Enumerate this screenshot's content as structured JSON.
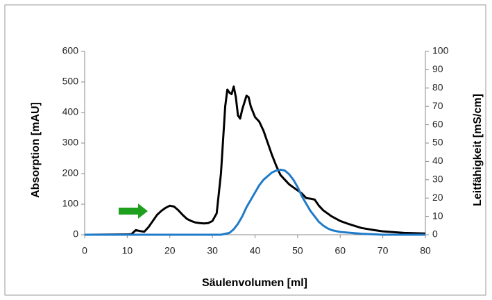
{
  "chart_data": {
    "type": "line",
    "x_label": "Säulenvolumen [ml]",
    "y_label": "Absorption [mAU]",
    "y2_label": "Leitfähigkeit [mS/cm]",
    "xlim": [
      0,
      80
    ],
    "xticks": [
      0,
      10,
      20,
      30,
      40,
      50,
      60,
      70,
      80
    ],
    "ylim": [
      0,
      600
    ],
    "yticks": [
      0,
      100,
      200,
      300,
      400,
      500,
      600
    ],
    "y2lim": [
      0,
      100
    ],
    "y2ticks": [
      0,
      10,
      20,
      30,
      40,
      50,
      60,
      70,
      80,
      90,
      100
    ],
    "series": [
      {
        "color": "#000000",
        "x": [
          0,
          10,
          11,
          12,
          13,
          14,
          15,
          16,
          17,
          18,
          19,
          20,
          21,
          22,
          23,
          24,
          25,
          26,
          27,
          28,
          29,
          30,
          31,
          32,
          33,
          33.5,
          34,
          34.5,
          35,
          35.5,
          36,
          36.5,
          37,
          38,
          38.5,
          39,
          40,
          41,
          42,
          43,
          44,
          45,
          46,
          47,
          48,
          49,
          50,
          51,
          52,
          53,
          54,
          55,
          56,
          57,
          58,
          60,
          62,
          65,
          68,
          70,
          75,
          80
        ],
        "values": [
          0,
          1,
          2,
          15,
          12,
          10,
          25,
          45,
          65,
          78,
          88,
          95,
          92,
          80,
          65,
          52,
          45,
          40,
          38,
          37,
          38,
          45,
          70,
          200,
          420,
          475,
          465,
          460,
          485,
          450,
          390,
          380,
          410,
          455,
          450,
          420,
          385,
          370,
          340,
          300,
          260,
          225,
          195,
          180,
          165,
          155,
          145,
          135,
          120,
          118,
          115,
          95,
          80,
          70,
          60,
          45,
          35,
          22,
          15,
          11,
          6,
          4
        ]
      },
      {
        "color": "#1f7bc8",
        "axis": "y2",
        "x": [
          0,
          32,
          34,
          35,
          36,
          37,
          38,
          39,
          40,
          41,
          42,
          43,
          44,
          45,
          46,
          47,
          48,
          49,
          50,
          51,
          52,
          53,
          54,
          55,
          56,
          57,
          58,
          60,
          65,
          70,
          80
        ],
        "values": [
          0,
          0,
          1,
          3,
          6,
          10,
          15,
          19,
          23,
          27,
          30,
          32,
          34,
          35,
          35.5,
          35,
          33,
          30,
          26,
          21,
          17,
          13,
          10,
          7,
          5,
          3.5,
          2.5,
          1.5,
          0.5,
          0,
          0
        ]
      }
    ]
  }
}
